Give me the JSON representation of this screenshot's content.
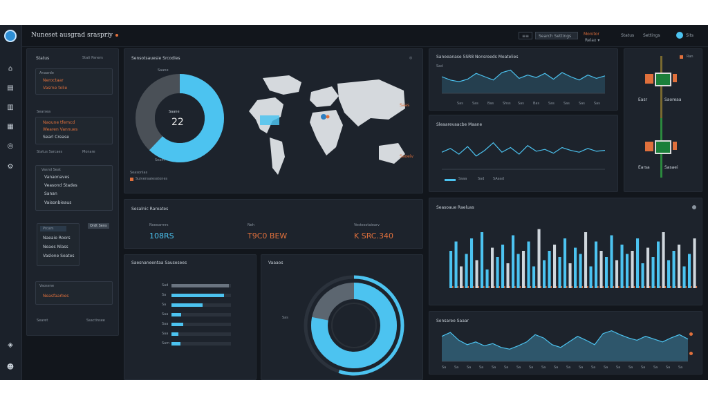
{
  "topbar": {
    "title": "Nuneset ausgrad sraspriy",
    "search_label": "Search Settings",
    "controls": [
      "≡≡",
      "Monitor",
      "Relax ▾"
    ],
    "right": [
      "Status",
      "Settings",
      "Sits"
    ]
  },
  "sidebar_panel": {
    "header": "Status",
    "header_right": "Stati Paners",
    "group1": {
      "title": "Anaarde",
      "items": [
        "Neroctaar",
        "Vasrne tolie"
      ]
    },
    "group2": {
      "title": "Searsea",
      "items": [
        "Naoune tfemcd",
        "Wearen Vannues",
        "Searl Crease"
      ]
    },
    "group3": {
      "title": "Status Sarcaes",
      "header_right": "Monare"
    },
    "group4": {
      "title": "Vasnd Seat",
      "items": [
        "Vanaonaves",
        "Veasond Stades",
        "Sanan",
        "Vaisonbieaus"
      ]
    },
    "group5": {
      "title": "Prcam",
      "button": "Ordt Sens",
      "items": [
        "Naeaie Roors",
        "Neaes Nlass",
        "Vaslone Seates"
      ]
    },
    "group6": {
      "title": "Vaosene",
      "items": [
        "Neasfaarbes"
      ]
    },
    "footer": {
      "left": "Searet",
      "right": "Ssactinsee"
    }
  },
  "map_card": {
    "title": "Sensotsauesie Srcodies",
    "corner_icon": "globe-icon",
    "donut_center": "22",
    "donut_top_label": "Saane",
    "donut_bottom_label": "Seam",
    "donut_pct": 0.62,
    "legend": [
      "Seasonlas",
      "Suivensaiesstones"
    ],
    "callout_top": "Saas",
    "callout_bottom": "Saoeiv"
  },
  "stats_card": {
    "title": "Sesalnic Rareates",
    "stats": [
      {
        "label": "Noeearmrs",
        "value": "108RS"
      },
      {
        "label": "Neh",
        "value": "T9C0 BEW"
      },
      {
        "label": "Vestesotaiearv",
        "value": "K SRC.340"
      }
    ]
  },
  "bars_card": {
    "title": "Saesnaneentaa Sausesees",
    "rows": [
      {
        "label": "Sad",
        "value": 0.96
      },
      {
        "label": "Sa",
        "value": 0.88
      },
      {
        "label": "Sa",
        "value": 0.52
      },
      {
        "label": "Saa",
        "value": 0.16
      },
      {
        "label": "Saa",
        "value": 0.2
      },
      {
        "label": "Saa",
        "value": 0.12
      },
      {
        "label": "Sam",
        "value": 0.15
      }
    ],
    "value_labels": [
      "Sanean",
      "Sam"
    ]
  },
  "ring_card": {
    "title": "Vaaaos",
    "side_label": "Sas",
    "inner_pct": 0.78,
    "outer_pct": 0.55
  },
  "line_card1": {
    "title": "Sanoeanase 5SR8 Nonsreeds Meatelies",
    "ylabel": "Sad",
    "xticks": [
      "Sas",
      "Sas",
      "Bas",
      "Shss",
      "Sas",
      "Bas",
      "Sas",
      "Sas",
      "Sas",
      "Sas"
    ]
  },
  "line_card2": {
    "title": "Sleaarevaacbe Maane",
    "legend": [
      "Saaa",
      "Sad",
      "SAaad"
    ]
  },
  "phone_card": {
    "labels": [
      "Easr",
      "Saoreaa"
    ],
    "labels2": [
      "Earsa",
      "Sasaei"
    ],
    "corner": "Ran"
  },
  "column_card": {
    "title": "Seasoaue Raeluas"
  },
  "area_card": {
    "title": "Sonsaree Saaar",
    "xticks": [
      "Sa",
      "Sa",
      "Sa",
      "Sa",
      "Sa",
      "Sa",
      "Sa",
      "Sa",
      "Sa",
      "Sa",
      "Sa",
      "Sa",
      "Sa",
      "Sa",
      "Sa",
      "Sa",
      "Sa",
      "Sa",
      "Sa",
      "Sa"
    ]
  },
  "colors": {
    "accent": "#4cc3f0",
    "orange": "#e0703c",
    "card": "#1d232c",
    "bg": "#12161c",
    "grey": "#5c6670"
  },
  "rail_icons": [
    "app-logo-icon",
    "home-icon",
    "document-icon",
    "book-icon",
    "grid-icon",
    "globe-icon",
    "settings-icon",
    "shield-icon",
    "user-icon"
  ],
  "chart_data": [
    {
      "type": "line",
      "series": [
        {
          "values": [
            40,
            36,
            34,
            37,
            44,
            40,
            36,
            45,
            48,
            38,
            42,
            39,
            44,
            37,
            45,
            40,
            36,
            42,
            38,
            41
          ]
        }
      ]
    },
    {
      "type": "line",
      "series": [
        {
          "values": [
            28,
            32,
            26,
            34,
            24,
            30,
            38,
            28,
            33,
            26,
            35,
            29,
            31,
            27,
            33,
            30,
            28,
            32,
            29,
            30
          ]
        }
      ]
    },
    {
      "type": "bar",
      "series": [
        {
          "values": [
            0.6,
            0.75,
            0.35,
            0.55,
            0.8,
            0.45,
            0.9,
            0.3,
            0.65,
            0.5,
            0.7,
            0.4,
            0.85,
            0.55,
            0.6,
            0.75,
            0.35,
            0.95,
            0.45,
            0.6,
            0.7,
            0.5,
            0.8,
            0.4,
            0.65,
            0.55,
            0.9,
            0.35,
            0.75,
            0.6,
            0.5,
            0.85,
            0.45,
            0.7,
            0.55,
            0.6,
            0.8,
            0.4,
            0.65,
            0.5,
            0.75,
            0.9,
            0.45,
            0.6,
            0.7,
            0.35,
            0.55,
            0.8
          ]
        }
      ]
    },
    {
      "type": "area",
      "series": [
        {
          "values": [
            45,
            52,
            38,
            30,
            35,
            28,
            32,
            25,
            22,
            28,
            35,
            48,
            42,
            30,
            25,
            35,
            45,
            38,
            30,
            50,
            55,
            48,
            42,
            38,
            45,
            40,
            35,
            42,
            48,
            40
          ]
        }
      ]
    }
  ]
}
